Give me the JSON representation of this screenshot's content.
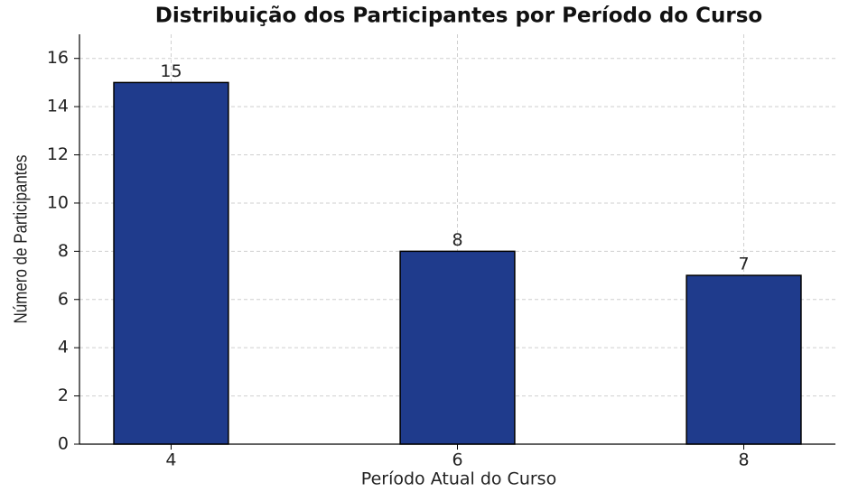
{
  "chart_data": {
    "type": "bar",
    "title": "Distribuição dos Participantes por Período do Curso",
    "x_label": "Período Atual do Curso",
    "y_label": "Número de Participantes",
    "categories": [
      "4",
      "6",
      "8"
    ],
    "values": [
      15,
      8,
      7
    ],
    "color": "#1f3b8c",
    "ylim": [
      0,
      17
    ],
    "yticks": [
      0,
      2,
      4,
      6,
      8,
      10,
      12,
      14,
      16
    ],
    "grid": true
  }
}
